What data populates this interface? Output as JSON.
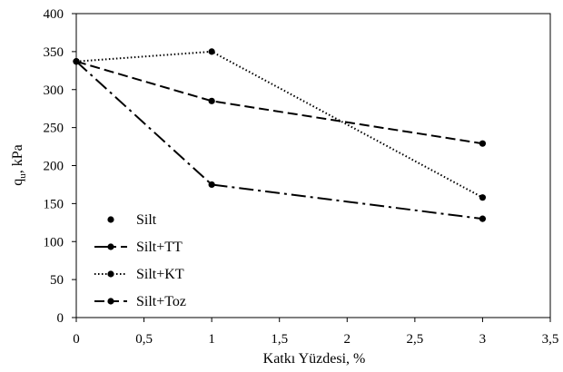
{
  "chart_data": {
    "type": "line",
    "xlabel": "Katkı Yüzdesi, %",
    "ylabel": {
      "main": "q",
      "sub": "u",
      "rest": ", kPa"
    },
    "xlim": [
      0,
      3.5
    ],
    "ylim": [
      0,
      400
    ],
    "x_ticks": [
      {
        "value": 0,
        "label": "0"
      },
      {
        "value": 0.5,
        "label": "0,5"
      },
      {
        "value": 1,
        "label": "1"
      },
      {
        "value": 1.5,
        "label": "1,5"
      },
      {
        "value": 2,
        "label": "2"
      },
      {
        "value": 2.5,
        "label": "2,5"
      },
      {
        "value": 3,
        "label": "3"
      },
      {
        "value": 3.5,
        "label": "3,5"
      }
    ],
    "y_ticks": [
      {
        "value": 0,
        "label": "0"
      },
      {
        "value": 50,
        "label": "50"
      },
      {
        "value": 100,
        "label": "100"
      },
      {
        "value": 150,
        "label": "150"
      },
      {
        "value": 200,
        "label": "200"
      },
      {
        "value": 250,
        "label": "250"
      },
      {
        "value": 300,
        "label": "300"
      },
      {
        "value": 350,
        "label": "350"
      },
      {
        "value": 400,
        "label": "400"
      }
    ],
    "grid": false,
    "legend_position": "bottom-left",
    "series": [
      {
        "name": "Silt",
        "line_style": "none",
        "x": [
          0
        ],
        "y": [
          337
        ]
      },
      {
        "name": "Silt+TT",
        "line_style": "dash-dot",
        "x": [
          0,
          1,
          3
        ],
        "y": [
          337,
          175,
          130
        ]
      },
      {
        "name": "Silt+KT",
        "line_style": "dotted",
        "x": [
          0,
          1,
          3
        ],
        "y": [
          337,
          350,
          158
        ]
      },
      {
        "name": "Silt+Toz",
        "line_style": "dashed",
        "x": [
          0,
          1,
          3
        ],
        "y": [
          337,
          285,
          229
        ]
      }
    ],
    "colors": {
      "line": "#000000",
      "axis": "#000000",
      "background": "#ffffff"
    }
  }
}
